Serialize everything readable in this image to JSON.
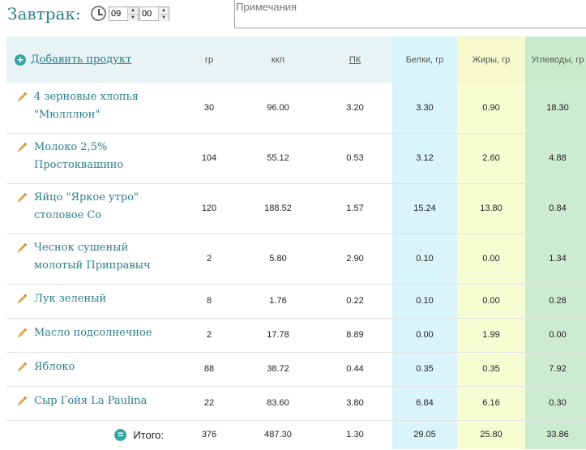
{
  "meal": {
    "title": "Завтрак:",
    "time_hours": "09",
    "time_minutes": "00",
    "notes_placeholder": "Примечания"
  },
  "table": {
    "add_product_label": "Добавить продукт",
    "columns": {
      "grams": "гр",
      "kcal": "ккл",
      "pk": "ПК",
      "protein": "Белки, гр",
      "fat": "Жиры, гр",
      "carbs": "Углеводы, гр"
    },
    "rows": [
      {
        "name": "4 зерновые хлопья \"Мюлллюн\"",
        "grams": "30",
        "kcal": "96.00",
        "pk": "3.20",
        "protein": "3.30",
        "fat": "0.90",
        "carbs": "18.30"
      },
      {
        "name": "Молоко 2,5% Простоквашино",
        "grams": "104",
        "kcal": "55.12",
        "pk": "0.53",
        "protein": "3.12",
        "fat": "2.60",
        "carbs": "4.88"
      },
      {
        "name": "Яйцо \"Яркое утро\" столовое Со",
        "grams": "120",
        "kcal": "188.52",
        "pk": "1.57",
        "protein": "15.24",
        "fat": "13.80",
        "carbs": "0.84"
      },
      {
        "name": "Чеснок сушеный молотый Приправыч",
        "grams": "2",
        "kcal": "5.80",
        "pk": "2.90",
        "protein": "0.10",
        "fat": "0.00",
        "carbs": "1.34"
      },
      {
        "name": "Лук зеленый",
        "grams": "8",
        "kcal": "1.76",
        "pk": "0.22",
        "protein": "0.10",
        "fat": "0.00",
        "carbs": "0.28"
      },
      {
        "name": "Масло подсолнечное",
        "grams": "2",
        "kcal": "17.78",
        "pk": "8.89",
        "protein": "0.00",
        "fat": "1.99",
        "carbs": "0.00"
      },
      {
        "name": "Яблоко",
        "grams": "88",
        "kcal": "38.72",
        "pk": "0.44",
        "protein": "0.35",
        "fat": "0.35",
        "carbs": "7.92"
      },
      {
        "name": "Сыр Гойя La Paulina",
        "grams": "22",
        "kcal": "83.60",
        "pk": "3.80",
        "protein": "6.84",
        "fat": "6.16",
        "carbs": "0.30"
      }
    ],
    "total": {
      "label": "Итого:",
      "grams": "376",
      "kcal": "487.30",
      "pk": "1.30",
      "protein": "29.05",
      "fat": "25.80",
      "carbs": "33.86"
    }
  },
  "colors": {
    "accent_text": "#2b7f8c",
    "protein_col": "#d9f4fb",
    "fat_col": "#f8fcd2",
    "carbs_col": "#cdebd0",
    "header_bg": "#e8f3f5"
  },
  "icons": {
    "clock": "clock-icon",
    "add": "plus-circle-icon",
    "edit": "pencil-icon",
    "total": "equals-circle-icon"
  }
}
